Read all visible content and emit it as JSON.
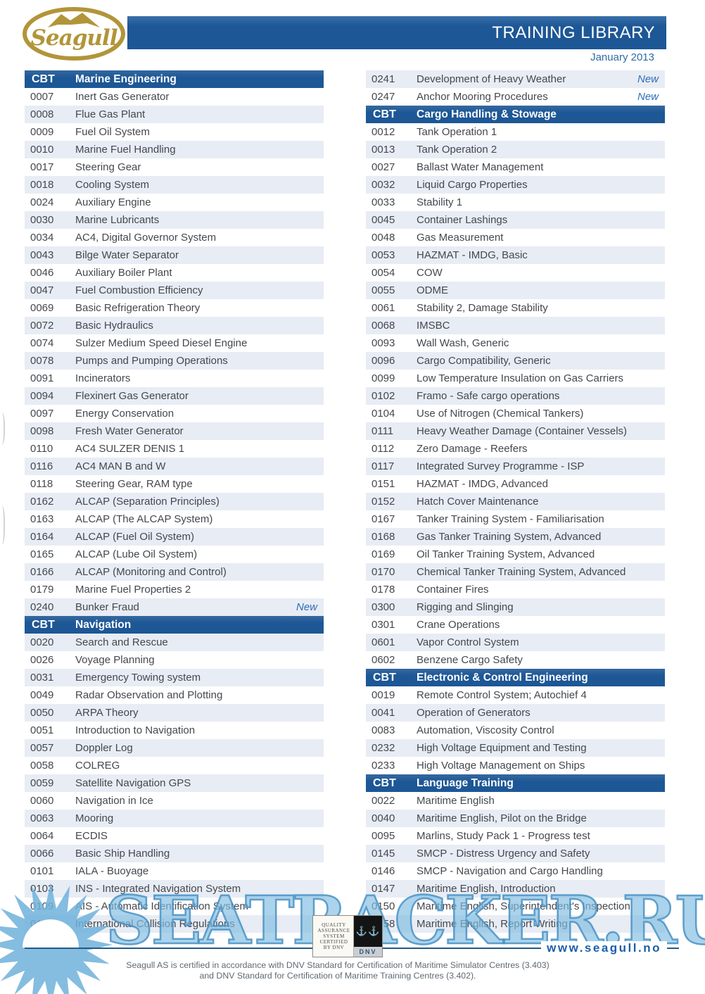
{
  "header": {
    "logo_text": "Seagull",
    "title": "TRAINING LIBRARY",
    "date": "January 2013"
  },
  "columns": {
    "left": [
      {
        "type": "header",
        "code": "CBT",
        "label": "Marine Engineering"
      },
      {
        "type": "row",
        "code": "0007",
        "name": "Inert Gas Generator"
      },
      {
        "type": "row",
        "code": "0008",
        "name": "Flue Gas Plant"
      },
      {
        "type": "row",
        "code": "0009",
        "name": "Fuel Oil System"
      },
      {
        "type": "row",
        "code": "0010",
        "name": "Marine Fuel Handling"
      },
      {
        "type": "row",
        "code": "0017",
        "name": "Steering Gear"
      },
      {
        "type": "row",
        "code": "0018",
        "name": "Cooling System"
      },
      {
        "type": "row",
        "code": "0024",
        "name": "Auxiliary Engine"
      },
      {
        "type": "row",
        "code": "0030",
        "name": "Marine Lubricants"
      },
      {
        "type": "row",
        "code": "0034",
        "name": "AC4, Digital Governor System"
      },
      {
        "type": "row",
        "code": "0043",
        "name": "Bilge Water Separator"
      },
      {
        "type": "row",
        "code": "0046",
        "name": "Auxiliary Boiler Plant"
      },
      {
        "type": "row",
        "code": "0047",
        "name": "Fuel Combustion Efficiency"
      },
      {
        "type": "row",
        "code": "0069",
        "name": "Basic Refrigeration Theory"
      },
      {
        "type": "row",
        "code": "0072",
        "name": "Basic Hydraulics"
      },
      {
        "type": "row",
        "code": "0074",
        "name": "Sulzer Medium Speed Diesel Engine"
      },
      {
        "type": "row",
        "code": "0078",
        "name": "Pumps and Pumping Operations"
      },
      {
        "type": "row",
        "code": "0091",
        "name": "Incinerators"
      },
      {
        "type": "row",
        "code": "0094",
        "name": "Flexinert Gas Generator"
      },
      {
        "type": "row",
        "code": "0097",
        "name": "Energy Conservation"
      },
      {
        "type": "row",
        "code": "0098",
        "name": "Fresh Water Generator"
      },
      {
        "type": "row",
        "code": "0110",
        "name": "AC4 SULZER DENIS 1"
      },
      {
        "type": "row",
        "code": "0116",
        "name": "AC4 MAN B and W"
      },
      {
        "type": "row",
        "code": "0118",
        "name": "Steering Gear, RAM type"
      },
      {
        "type": "row",
        "code": "0162",
        "name": "ALCAP (Separation Principles)"
      },
      {
        "type": "row",
        "code": "0163",
        "name": "ALCAP (The ALCAP System)"
      },
      {
        "type": "row",
        "code": "0164",
        "name": "ALCAP (Fuel Oil System)"
      },
      {
        "type": "row",
        "code": "0165",
        "name": "ALCAP (Lube Oil System)"
      },
      {
        "type": "row",
        "code": "0166",
        "name": "ALCAP (Monitoring and Control)"
      },
      {
        "type": "row",
        "code": "0179",
        "name": "Marine Fuel Properties 2"
      },
      {
        "type": "row",
        "code": "0240",
        "name": "Bunker Fraud",
        "badge": "New"
      },
      {
        "type": "header",
        "code": "CBT",
        "label": "Navigation"
      },
      {
        "type": "row",
        "code": "0020",
        "name": "Search and Rescue"
      },
      {
        "type": "row",
        "code": "0026",
        "name": "Voyage Planning"
      },
      {
        "type": "row",
        "code": "0031",
        "name": "Emergency Towing system"
      },
      {
        "type": "row",
        "code": "0049",
        "name": "Radar Observation and Plotting"
      },
      {
        "type": "row",
        "code": "0050",
        "name": "ARPA Theory"
      },
      {
        "type": "row",
        "code": "0051",
        "name": "Introduction to Navigation"
      },
      {
        "type": "row",
        "code": "0057",
        "name": "Doppler Log"
      },
      {
        "type": "row",
        "code": "0058",
        "name": "COLREG"
      },
      {
        "type": "row",
        "code": "0059",
        "name": "Satellite Navigation GPS"
      },
      {
        "type": "row",
        "code": "0060",
        "name": "Navigation in Ice"
      },
      {
        "type": "row",
        "code": "0063",
        "name": "Mooring"
      },
      {
        "type": "row",
        "code": "0064",
        "name": "ECDIS"
      },
      {
        "type": "row",
        "code": "0066",
        "name": "Basic Ship Handling"
      },
      {
        "type": "row",
        "code": "0101",
        "name": "IALA - Buoyage"
      },
      {
        "type": "row",
        "code": "0103",
        "name": "INS - Integrated Navigation System"
      },
      {
        "type": "row",
        "code": "0109",
        "name": "AIS - Automatic Identification System"
      },
      {
        "type": "row",
        "code": "0172",
        "name": "International Collision Regulations"
      }
    ],
    "right": [
      {
        "type": "row",
        "code": "0241",
        "name": "Development of Heavy Weather",
        "badge": "New"
      },
      {
        "type": "row",
        "code": "0247",
        "name": "Anchor Mooring Procedures",
        "badge": "New"
      },
      {
        "type": "header",
        "code": "CBT",
        "label": "Cargo Handling & Stowage"
      },
      {
        "type": "row",
        "code": "0012",
        "name": "Tank Operation 1"
      },
      {
        "type": "row",
        "code": "0013",
        "name": "Tank Operation 2"
      },
      {
        "type": "row",
        "code": "0027",
        "name": "Ballast Water Management"
      },
      {
        "type": "row",
        "code": "0032",
        "name": "Liquid Cargo Properties"
      },
      {
        "type": "row",
        "code": "0033",
        "name": "Stability 1"
      },
      {
        "type": "row",
        "code": "0045",
        "name": "Container Lashings"
      },
      {
        "type": "row",
        "code": "0048",
        "name": "Gas Measurement"
      },
      {
        "type": "row",
        "code": "0053",
        "name": "HAZMAT - IMDG, Basic"
      },
      {
        "type": "row",
        "code": "0054",
        "name": "COW"
      },
      {
        "type": "row",
        "code": "0055",
        "name": "ODME"
      },
      {
        "type": "row",
        "code": "0061",
        "name": "Stability 2, Damage Stability"
      },
      {
        "type": "row",
        "code": "0068",
        "name": "IMSBC"
      },
      {
        "type": "row",
        "code": "0093",
        "name": "Wall Wash, Generic"
      },
      {
        "type": "row",
        "code": "0096",
        "name": "Cargo Compatibility, Generic"
      },
      {
        "type": "row",
        "code": "0099",
        "name": "Low Temperature Insulation on Gas Carriers"
      },
      {
        "type": "row",
        "code": "0102",
        "name": "Framo - Safe cargo operations"
      },
      {
        "type": "row",
        "code": "0104",
        "name": "Use of Nitrogen (Chemical Tankers)"
      },
      {
        "type": "row",
        "code": "0111",
        "name": "Heavy Weather Damage (Container Vessels)"
      },
      {
        "type": "row",
        "code": "0112",
        "name": "Zero Damage - Reefers"
      },
      {
        "type": "row",
        "code": "0117",
        "name": "Integrated Survey Programme - ISP"
      },
      {
        "type": "row",
        "code": "0151",
        "name": "HAZMAT - IMDG, Advanced"
      },
      {
        "type": "row",
        "code": "0152",
        "name": "Hatch Cover Maintenance"
      },
      {
        "type": "row",
        "code": "0167",
        "name": "Tanker Training System - Familiarisation"
      },
      {
        "type": "row",
        "code": "0168",
        "name": "Gas Tanker Training System, Advanced"
      },
      {
        "type": "row",
        "code": "0169",
        "name": "Oil Tanker Training System, Advanced"
      },
      {
        "type": "row",
        "code": "0170",
        "name": "Chemical Tanker Training System, Advanced"
      },
      {
        "type": "row",
        "code": "0178",
        "name": "Container Fires"
      },
      {
        "type": "row",
        "code": "0300",
        "name": "Rigging and Slinging"
      },
      {
        "type": "row",
        "code": "0301",
        "name": "Crane Operations"
      },
      {
        "type": "row",
        "code": "0601",
        "name": "Vapor Control System"
      },
      {
        "type": "row",
        "code": "0602",
        "name": "Benzene Cargo Safety"
      },
      {
        "type": "header",
        "code": "CBT",
        "label": "Electronic & Control Engineering"
      },
      {
        "type": "row",
        "code": "0019",
        "name": "Remote Control System; Autochief 4"
      },
      {
        "type": "row",
        "code": "0041",
        "name": "Operation of Generators"
      },
      {
        "type": "row",
        "code": "0083",
        "name": "Automation, Viscosity Control"
      },
      {
        "type": "row",
        "code": "0232",
        "name": "High Voltage Equipment and Testing"
      },
      {
        "type": "row",
        "code": "0233",
        "name": "High Voltage Management on Ships"
      },
      {
        "type": "header",
        "code": "CBT",
        "label": "Language Training"
      },
      {
        "type": "row",
        "code": "0022",
        "name": "Maritime English"
      },
      {
        "type": "row",
        "code": "0040",
        "name": "Maritime English, Pilot on the Bridge"
      },
      {
        "type": "row",
        "code": "0095",
        "name": "Marlins, Study Pack 1 - Progress test"
      },
      {
        "type": "row",
        "code": "0145",
        "name": "SMCP - Distress Urgency and Safety"
      },
      {
        "type": "row",
        "code": "0146",
        "name": "SMCP - Navigation and Cargo Handling"
      },
      {
        "type": "row",
        "code": "0147",
        "name": "Maritime English, Introduction"
      },
      {
        "type": "row",
        "code": "0150",
        "name": "Maritime English, Superintendent's Inspection"
      },
      {
        "type": "row",
        "code": "0158",
        "name": "Maritime English, Report Writing"
      }
    ]
  },
  "footer": {
    "badge": {
      "lines": [
        "QUALITY",
        "ASSURANCE",
        "SYSTEM",
        "CERTIFIED",
        "BY DNV"
      ],
      "anchors_glyph": "⚓⚓",
      "dnv_label": "DNV"
    },
    "website": "www.seagull.no",
    "cert_line1": "Seagull AS is certified in accordance with DNV Standard for Certification of Maritime Simulator Centres (3.403)",
    "cert_line2": "and DNV Standard for Certification of Maritime Training Centres (3.402)."
  },
  "watermark": {
    "text": "SEATRACKER.RU"
  },
  "colors": {
    "header_blue": "#1d5796",
    "row_stripe": "#e8ecf4",
    "row_text": "#44484e",
    "new_badge_blue": "#2f6db8",
    "logo_gold": "#b29539",
    "watermark_blue": "#6fb2da",
    "website_blue": "#1a5fa8"
  }
}
